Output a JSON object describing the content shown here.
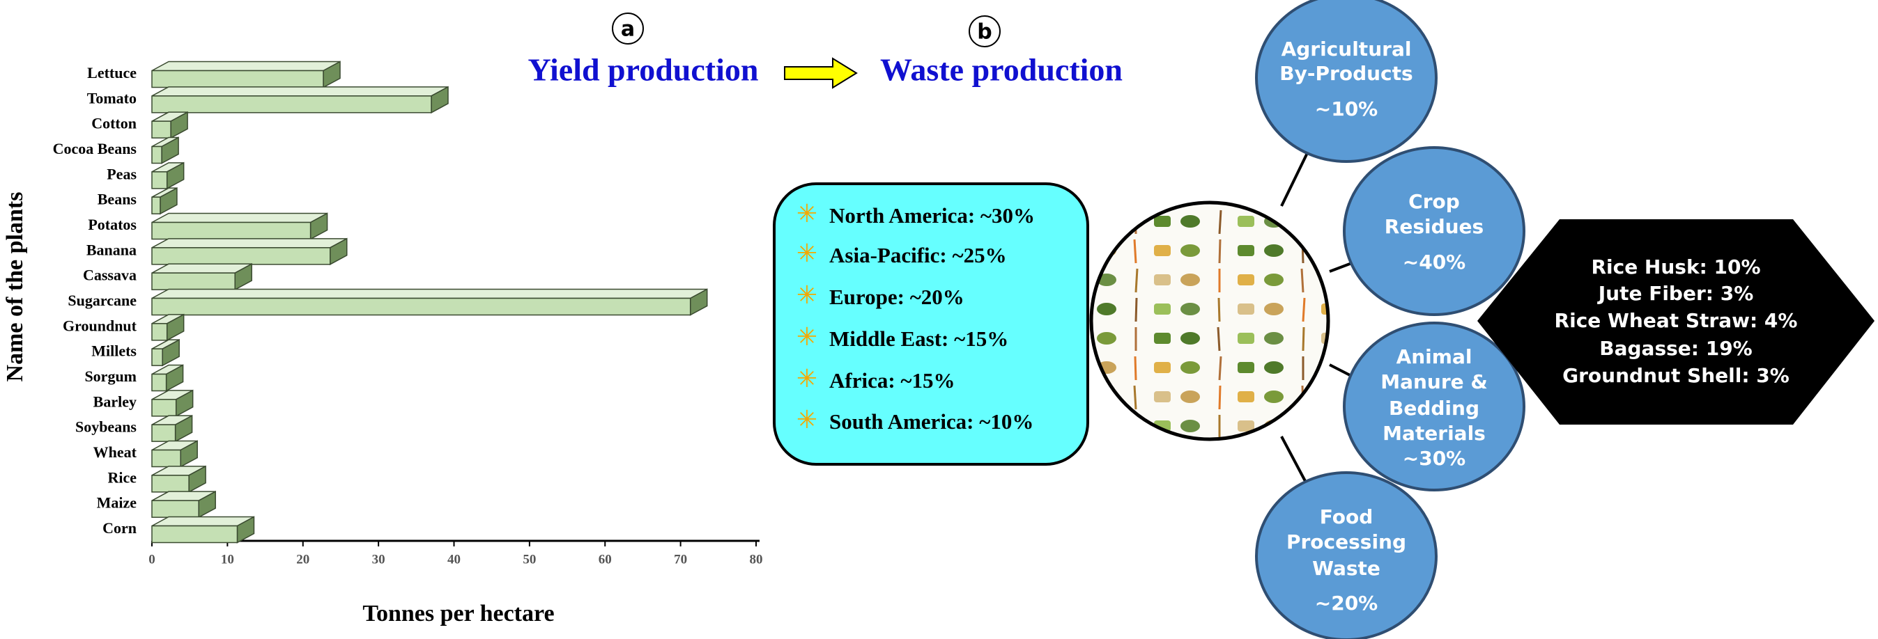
{
  "chart_data": {
    "type": "hbar3d",
    "xlabel": "Tonnes per hectare",
    "ylabel": "Name of the plants",
    "categories": [
      "Lettuce",
      "Tomato",
      "Cotton",
      "Cocoa Beans",
      "Peas",
      "Beans",
      "Potatos",
      "Banana",
      "Cassava",
      "Sugarcane",
      "Groundnut",
      "Millets",
      "Sorgum",
      "Barley",
      "Soybeans",
      "Wheat",
      "Rice",
      "Maize",
      "Corn"
    ],
    "values": [
      22.7,
      37,
      2.5,
      1.3,
      2,
      1.1,
      21,
      23.6,
      11,
      71.3,
      2,
      1.4,
      1.9,
      3.2,
      3.1,
      3.8,
      4.9,
      6.2,
      11.3
    ],
    "color": "#c5e0b4",
    "xlim": [
      0,
      80
    ],
    "xticks": [
      0,
      10,
      20,
      30,
      40,
      50,
      60,
      70,
      80
    ]
  },
  "diagram": {
    "panel_a": "a",
    "panel_b": "b",
    "yield_title": "Yield production",
    "waste_title": "Waste production",
    "regions": [
      "North America: ~30%",
      "Asia-Pacific: ~25%",
      "Europe: ~20%",
      "Middle East: ~15%",
      "Africa: ~15%",
      "South America: ~10%"
    ],
    "waste_types": [
      {
        "lines": [
          "Agricultural",
          "By-Products"
        ],
        "share": "~10%"
      },
      {
        "lines": [
          "Crop",
          "Residues"
        ],
        "share": "~40%"
      },
      {
        "lines": [
          "Animal",
          "Manure &",
          "Bedding",
          "Materials"
        ],
        "share": "~30%"
      },
      {
        "lines": [
          "Food",
          "Processing",
          "Waste"
        ],
        "share": "~20%"
      }
    ],
    "residue_breakdown": [
      "Rice Husk: 10%",
      "Jute Fiber: 3%",
      "Rice Wheat Straw: 4%",
      "Bagasse: 19%",
      "Groundnut Shell: 3%"
    ]
  }
}
